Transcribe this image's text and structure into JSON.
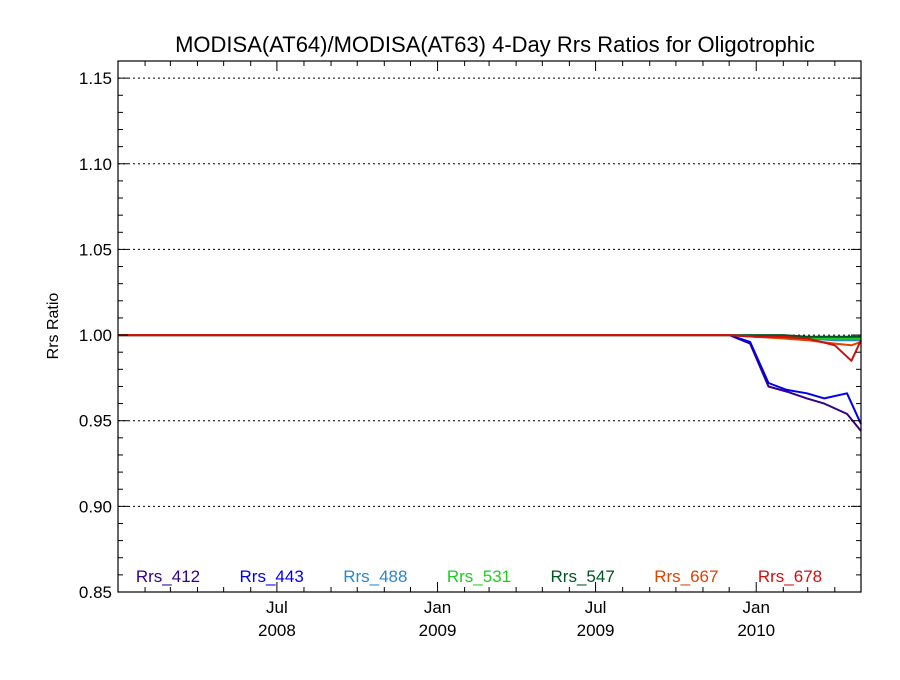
{
  "chart_data": {
    "type": "line",
    "title": "MODISA(AT64)/MODISA(AT63) 4-Day Rrs Ratios for Oligotrophic",
    "xlabel": "",
    "ylabel": "Rrs Ratio",
    "x_range": [
      "2008-01-01",
      "2010-05-01"
    ],
    "ylim": [
      0.85,
      1.16
    ],
    "y_ticks": [
      "0.85",
      "0.90",
      "0.95",
      "1.00",
      "1.05",
      "1.10",
      "1.15"
    ],
    "x_ticks": [
      {
        "date": "2008-07-01",
        "label": "Jul",
        "year": "2008"
      },
      {
        "date": "2009-01-01",
        "label": "Jan",
        "year": "2009"
      },
      {
        "date": "2009-07-01",
        "label": "Jul",
        "year": "2009"
      },
      {
        "date": "2010-01-01",
        "label": "Jan",
        "year": "2010"
      }
    ],
    "grid": "dotted horizontal lines at major y ticks",
    "legend_placement": "bottom, inside plot",
    "series": [
      {
        "name": "Rrs_412",
        "color": "#330088",
        "x": [
          "2008-01-01",
          "2009-04-01",
          "2009-11-01",
          "2009-12-01",
          "2009-12-25",
          "2010-01-15",
          "2010-02-05",
          "2010-02-28",
          "2010-03-20",
          "2010-04-15",
          "2010-05-01"
        ],
        "values": [
          1.0,
          1.0,
          1.0,
          1.0,
          0.995,
          0.97,
          0.967,
          0.963,
          0.96,
          0.954,
          0.944
        ]
      },
      {
        "name": "Rrs_443",
        "color": "#0000ee",
        "x": [
          "2008-01-01",
          "2009-04-01",
          "2009-11-01",
          "2009-12-01",
          "2009-12-25",
          "2010-01-15",
          "2010-02-05",
          "2010-02-28",
          "2010-03-20",
          "2010-04-15",
          "2010-05-01"
        ],
        "values": [
          1.0,
          1.0,
          1.0,
          1.0,
          0.996,
          0.972,
          0.968,
          0.966,
          0.963,
          0.966,
          0.948
        ]
      },
      {
        "name": "Rrs_488",
        "color": "#2f86cc",
        "x": [
          "2008-01-01",
          "2009-11-01",
          "2009-12-01",
          "2010-01-01",
          "2010-02-01",
          "2010-03-01",
          "2010-04-01",
          "2010-05-01"
        ],
        "values": [
          1.0,
          1.0,
          1.0,
          0.999,
          0.999,
          0.998,
          0.997,
          0.997
        ]
      },
      {
        "name": "Rrs_531",
        "color": "#22cc22",
        "x": [
          "2008-01-01",
          "2009-11-01",
          "2009-12-01",
          "2010-01-01",
          "2010-02-01",
          "2010-03-01",
          "2010-04-01",
          "2010-05-01"
        ],
        "values": [
          1.0,
          1.0,
          1.0,
          0.999,
          0.999,
          0.998,
          0.998,
          0.998
        ]
      },
      {
        "name": "Rrs_547",
        "color": "#005522",
        "x": [
          "2008-01-01",
          "2009-11-01",
          "2009-12-01",
          "2010-01-01",
          "2010-02-01",
          "2010-03-01",
          "2010-04-01",
          "2010-05-01"
        ],
        "values": [
          1.0,
          1.0,
          1.0,
          1.0,
          1.0,
          0.999,
          0.999,
          0.999
        ]
      },
      {
        "name": "Rrs_667",
        "color": "#dd4400",
        "x": [
          "2008-01-01",
          "2009-11-01",
          "2009-12-01",
          "2010-01-01",
          "2010-02-01",
          "2010-03-01",
          "2010-04-01",
          "2010-04-20",
          "2010-05-01"
        ],
        "values": [
          1.0,
          1.0,
          1.0,
          0.999,
          0.998,
          0.997,
          0.995,
          0.994,
          0.996
        ]
      },
      {
        "name": "Rrs_678",
        "color": "#cc1111",
        "x": [
          "2008-01-01",
          "2009-11-01",
          "2009-12-01",
          "2010-01-01",
          "2010-02-01",
          "2010-03-01",
          "2010-04-01",
          "2010-04-20",
          "2010-05-01"
        ],
        "values": [
          1.0,
          1.0,
          1.0,
          0.999,
          0.999,
          0.998,
          0.994,
          0.985,
          0.997
        ]
      }
    ]
  }
}
